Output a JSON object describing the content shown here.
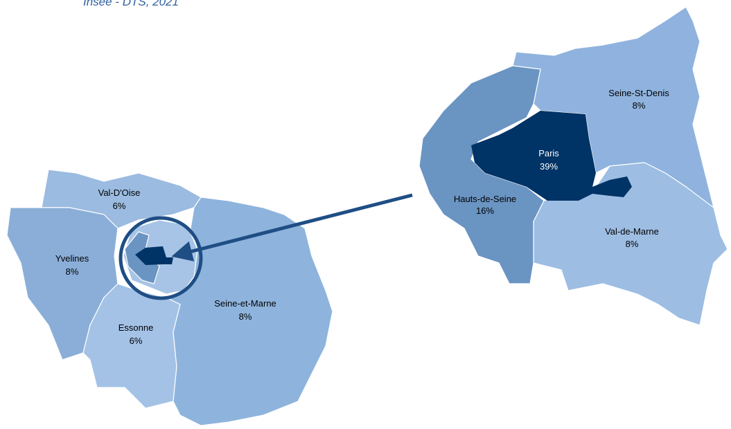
{
  "source": "Insee - DTS, 2021",
  "region_map": [
    {
      "name": "Val-D'Oise",
      "share": "6%"
    },
    {
      "name": "Yvelines",
      "share": "8%"
    },
    {
      "name": "Essonne",
      "share": "6%"
    },
    {
      "name": "Seine-et-Marne",
      "share": "8%"
    }
  ],
  "inset_map": [
    {
      "name": "Paris",
      "share": "39%"
    },
    {
      "name": "Hauts-de-Seine",
      "share": "16%"
    },
    {
      "name": "Seine-St-Denis",
      "share": "8%"
    },
    {
      "name": "Val-de-Marne",
      "share": "8%"
    }
  ]
}
